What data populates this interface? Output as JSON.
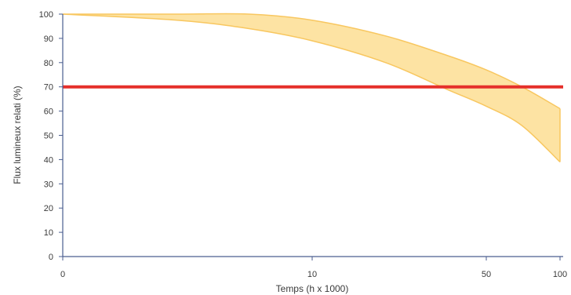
{
  "chart_data": {
    "type": "area",
    "title": "",
    "xlabel": "Temps (h x 1000)",
    "ylabel": "Flux lumineux relati (%)",
    "x_scale": "log-like",
    "x_ticks": [
      {
        "value": 0,
        "label": "0"
      },
      {
        "value": 10,
        "label": "10"
      },
      {
        "value": 50,
        "label": "50"
      },
      {
        "value": 100,
        "label": "100"
      }
    ],
    "y_ticks": [
      0,
      10,
      20,
      30,
      40,
      50,
      60,
      70,
      80,
      90,
      100
    ],
    "ylim": [
      0,
      100
    ],
    "grid": false,
    "band": {
      "x": [
        0,
        2,
        5,
        10,
        20,
        35,
        50,
        70,
        100
      ],
      "upper": [
        100,
        100,
        100,
        97.5,
        91,
        83,
        77,
        70,
        61
      ],
      "lower": [
        100,
        97.5,
        94,
        89,
        80,
        69,
        62,
        54,
        39
      ]
    },
    "threshold": {
      "value": 70
    },
    "colors": {
      "band_fill": "#fde3a3",
      "band_stroke": "#f8c760",
      "threshold": "#e5302b",
      "axis": "#4a5d8f"
    }
  }
}
